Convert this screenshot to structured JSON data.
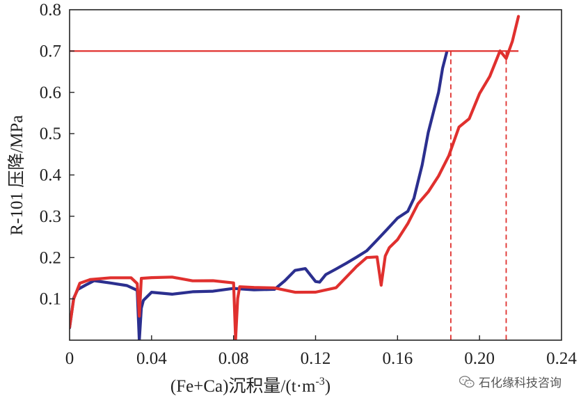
{
  "chart_data": {
    "type": "line",
    "title": "",
    "xlabel": "(Fe+Ca)沉积量/(t·m",
    "xlabel_sup": "-3",
    "xlabel_close": ")",
    "ylabel": "R-101 压降/MPa",
    "xlim": [
      0,
      0.24
    ],
    "ylim": [
      0,
      0.8
    ],
    "x_ticks": [
      0,
      0.04,
      0.08,
      0.12,
      0.16,
      0.2,
      0.24
    ],
    "x_tick_labels": [
      "0",
      "0.04",
      "0.08",
      "0.12",
      "0.16",
      "0.20",
      "0.24"
    ],
    "y_ticks": [
      0.1,
      0.2,
      0.3,
      0.4,
      0.5,
      0.6,
      0.7,
      0.8
    ],
    "y_tick_labels": [
      "0.1",
      "0.2",
      "0.3",
      "0.4",
      "0.5",
      "0.6",
      "0.7",
      "0.8"
    ],
    "threshold": {
      "y": 0.7,
      "x_range": [
        0.0,
        0.219
      ],
      "color": "#e0302e"
    },
    "vertical_markers": [
      {
        "x": 0.186,
        "y_top": 0.7,
        "color": "#e0302e",
        "style": "dashed"
      },
      {
        "x": 0.213,
        "y_top": 0.7,
        "color": "#e0302e",
        "style": "dashed"
      }
    ],
    "series": [
      {
        "color": "#2b2f8f",
        "x": [
          0.0,
          0.002,
          0.004,
          0.008,
          0.012,
          0.02,
          0.028,
          0.033,
          0.034,
          0.035,
          0.036,
          0.04,
          0.05,
          0.06,
          0.07,
          0.08,
          0.09,
          0.1,
          0.105,
          0.11,
          0.115,
          0.12,
          0.122,
          0.125,
          0.13,
          0.135,
          0.14,
          0.145,
          0.15,
          0.155,
          0.16,
          0.165,
          0.168,
          0.17,
          0.172,
          0.175,
          0.178,
          0.18,
          0.182,
          0.184
        ],
        "y": [
          0.03,
          0.1,
          0.12,
          0.13,
          0.14,
          0.135,
          0.13,
          0.12,
          0.0,
          0.08,
          0.1,
          0.12,
          0.115,
          0.12,
          0.12,
          0.125,
          0.12,
          0.12,
          0.14,
          0.165,
          0.17,
          0.14,
          0.14,
          0.16,
          0.175,
          0.19,
          0.205,
          0.22,
          0.245,
          0.27,
          0.295,
          0.31,
          0.34,
          0.38,
          0.42,
          0.5,
          0.56,
          0.6,
          0.66,
          0.7
        ]
      },
      {
        "color": "#e0302e",
        "x": [
          0.0,
          0.002,
          0.005,
          0.01,
          0.02,
          0.03,
          0.033,
          0.034,
          0.035,
          0.04,
          0.05,
          0.06,
          0.07,
          0.08,
          0.081,
          0.082,
          0.083,
          0.09,
          0.1,
          0.11,
          0.12,
          0.13,
          0.14,
          0.145,
          0.15,
          0.152,
          0.154,
          0.156,
          0.16,
          0.165,
          0.17,
          0.175,
          0.18,
          0.185,
          0.19,
          0.195,
          0.2,
          0.205,
          0.21,
          0.213,
          0.216,
          0.219
        ],
        "y": [
          0.03,
          0.1,
          0.14,
          0.15,
          0.155,
          0.155,
          0.14,
          0.06,
          0.15,
          0.15,
          0.15,
          0.14,
          0.14,
          0.135,
          0.0,
          0.1,
          0.13,
          0.13,
          0.13,
          0.12,
          0.12,
          0.13,
          0.18,
          0.2,
          0.2,
          0.13,
          0.2,
          0.22,
          0.24,
          0.28,
          0.33,
          0.36,
          0.4,
          0.45,
          0.52,
          0.54,
          0.6,
          0.64,
          0.7,
          0.68,
          0.72,
          0.78
        ]
      }
    ]
  },
  "watermark": {
    "text": "石化缘科技咨询",
    "icon": "wechat-icon"
  }
}
